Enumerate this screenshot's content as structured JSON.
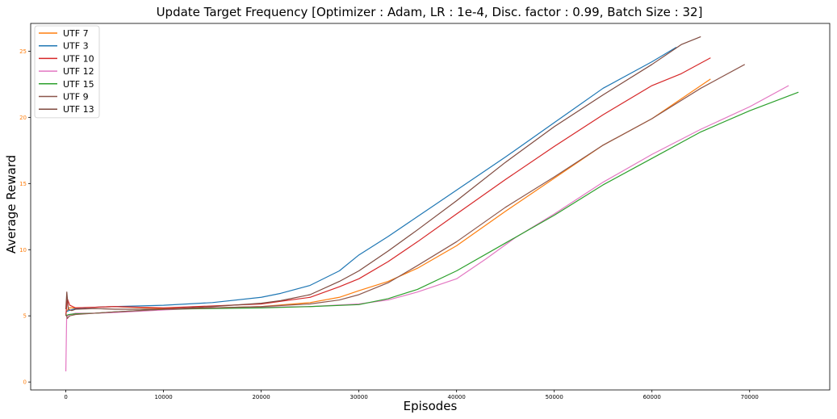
{
  "chart_data": {
    "type": "line",
    "title": "Update Target Frequency [Optimizer : Adam, LR : 1e-4, Disc. factor : 0.99, Batch Size : 32]",
    "xlabel": "Episodes",
    "ylabel": "Average Reward",
    "xlim": [
      -3600,
      78200
    ],
    "ylim": [
      -0.6,
      27.1
    ],
    "xticks": [
      0,
      10000,
      20000,
      30000,
      40000,
      50000,
      60000,
      70000
    ],
    "yticks": [
      0,
      5,
      10,
      15,
      20,
      25
    ],
    "ytick_color": "#ff7f0e",
    "grid": false,
    "legend_position": "upper left",
    "series": [
      {
        "name": "UTF 7",
        "color": "#ff7f0e",
        "x": [
          0,
          300,
          1000,
          3000,
          5000,
          10000,
          15000,
          20000,
          25000,
          28000,
          30000,
          33000,
          36000,
          40000,
          45000,
          50000,
          55000,
          60000,
          64000,
          66000
        ],
        "y": [
          5.2,
          5.6,
          5.6,
          5.65,
          5.7,
          5.55,
          5.6,
          5.7,
          6.0,
          6.4,
          6.9,
          7.6,
          8.6,
          10.3,
          12.9,
          15.4,
          17.9,
          19.9,
          21.9,
          22.9
        ]
      },
      {
        "name": "UTF 3",
        "color": "#1f77b4",
        "x": [
          0,
          300,
          1000,
          3000,
          5000,
          10000,
          15000,
          20000,
          22000,
          25000,
          28000,
          30000,
          33000,
          36000,
          40000,
          45000,
          50000,
          55000,
          60000,
          62500
        ],
        "y": [
          5.3,
          5.4,
          5.55,
          5.65,
          5.7,
          5.8,
          6.0,
          6.4,
          6.7,
          7.3,
          8.4,
          9.6,
          11.0,
          12.5,
          14.5,
          17.0,
          19.6,
          22.2,
          24.2,
          25.3
        ]
      },
      {
        "name": "UTF 10",
        "color": "#d62728",
        "x": [
          0,
          150,
          400,
          1000,
          3000,
          5000,
          10000,
          15000,
          20000,
          25000,
          28000,
          30000,
          33000,
          36000,
          40000,
          45000,
          50000,
          55000,
          60000,
          63000,
          66000
        ],
        "y": [
          5.0,
          6.3,
          5.8,
          5.6,
          5.65,
          5.7,
          5.6,
          5.75,
          5.9,
          6.4,
          7.2,
          7.8,
          9.1,
          10.6,
          12.7,
          15.3,
          17.8,
          20.2,
          22.4,
          23.3,
          24.5
        ]
      },
      {
        "name": "UTF 12",
        "color": "#e377c2",
        "x": [
          0,
          80,
          200,
          400,
          1000,
          3000,
          5000,
          10000,
          15000,
          20000,
          25000,
          30000,
          33000,
          36000,
          40000,
          43000,
          46000,
          50000,
          55000,
          60000,
          65000,
          70000,
          74000
        ],
        "y": [
          0.8,
          4.8,
          5.0,
          5.1,
          5.2,
          5.2,
          5.25,
          5.45,
          5.6,
          5.65,
          5.7,
          5.9,
          6.2,
          6.8,
          7.8,
          9.3,
          10.9,
          12.7,
          15.1,
          17.2,
          19.1,
          20.8,
          22.4
        ]
      },
      {
        "name": "UTF 15",
        "color": "#2ca02c",
        "x": [
          0,
          300,
          1000,
          3000,
          5000,
          10000,
          15000,
          20000,
          25000,
          30000,
          33000,
          36000,
          40000,
          45000,
          50000,
          55000,
          60000,
          65000,
          70000,
          75000
        ],
        "y": [
          5.0,
          5.1,
          5.15,
          5.2,
          5.3,
          5.5,
          5.55,
          5.6,
          5.7,
          5.85,
          6.3,
          7.0,
          8.4,
          10.5,
          12.6,
          14.9,
          16.9,
          18.9,
          20.5,
          21.9
        ]
      },
      {
        "name": "UTF 9",
        "color": "#8c564b",
        "x": [
          0,
          150,
          400,
          1000,
          3000,
          5000,
          10000,
          15000,
          20000,
          25000,
          28000,
          30000,
          33000,
          36000,
          40000,
          45000,
          50000,
          55000,
          60000,
          65000,
          69500
        ],
        "y": [
          5.2,
          4.8,
          5.0,
          5.1,
          5.2,
          5.3,
          5.5,
          5.6,
          5.7,
          5.9,
          6.2,
          6.6,
          7.5,
          8.8,
          10.6,
          13.2,
          15.5,
          17.9,
          19.9,
          22.2,
          24.0
        ]
      },
      {
        "name": "UTF 13",
        "color": "#7f4a3f",
        "x": [
          0,
          100,
          250,
          600,
          1000,
          3000,
          5000,
          10000,
          15000,
          20000,
          22000,
          25000,
          28000,
          30000,
          33000,
          36000,
          40000,
          45000,
          50000,
          55000,
          60000,
          63000,
          65000
        ],
        "y": [
          5.5,
          6.8,
          5.5,
          5.4,
          5.5,
          5.55,
          5.5,
          5.5,
          5.7,
          5.95,
          6.15,
          6.6,
          7.6,
          8.4,
          9.9,
          11.5,
          13.7,
          16.6,
          19.3,
          21.7,
          24.0,
          25.5,
          26.1
        ]
      }
    ]
  }
}
